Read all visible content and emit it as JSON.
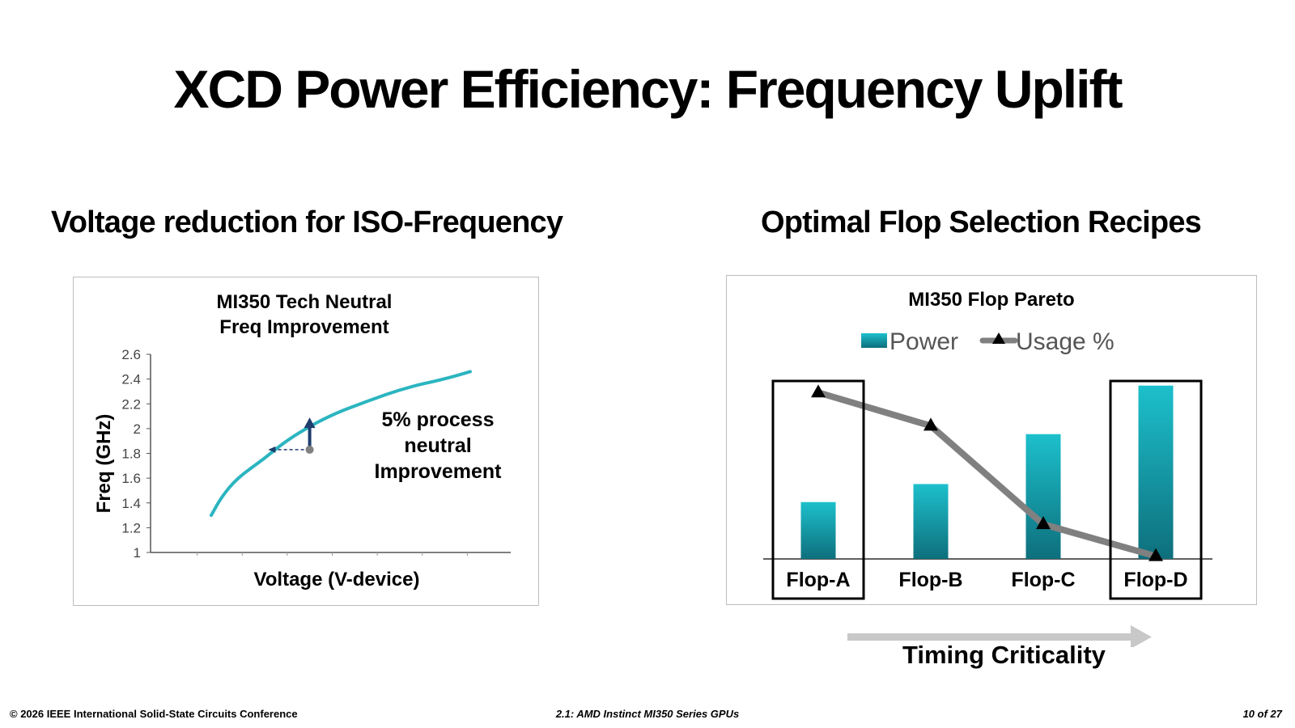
{
  "slide": {
    "title": "XCD Power Efficiency: Frequency Uplift",
    "left_heading": "Voltage reduction for ISO-Frequency",
    "right_heading": "Optimal Flop Selection Recipes",
    "timing_label": "Timing Criticality",
    "footer": {
      "left": "© 2026 IEEE International Solid-State Circuits Conference",
      "center": "2.1: AMD Instinct MI350 Series GPUs",
      "right": "10 of 27"
    },
    "colors": {
      "curve": "#2bb5c0",
      "arrow": "#1f3e6e",
      "bar_top": "#1cc0cc",
      "bar_bottom": "#0e6f7c",
      "usage_line": "#808080",
      "timing_arrow": "#c8c8c8"
    }
  },
  "chart_data": [
    {
      "type": "line",
      "title": "MI350 Tech Neutral\nFreq Improvement",
      "title_lines": [
        "MI350 Tech Neutral",
        "Freq Improvement"
      ],
      "xlabel": "Voltage (V-device)",
      "ylabel": "Freq (GHz)",
      "ylim": [
        1,
        2.6
      ],
      "yticks": [
        "1",
        "1.2",
        "1.4",
        "1.6",
        "1.8",
        "2",
        "2.2",
        "2.4",
        "2.6"
      ],
      "x_tick_labels": [],
      "series": [
        {
          "x": [
            0,
            0.04,
            0.1,
            0.2,
            0.3,
            0.45,
            0.6,
            0.75,
            0.9,
            1.0
          ],
          "y": [
            1.3,
            1.45,
            1.6,
            1.75,
            1.92,
            2.1,
            2.22,
            2.33,
            2.4,
            2.46
          ]
        }
      ],
      "annotation": {
        "lines": [
          "5% process",
          "neutral",
          "Improvement"
        ],
        "point": {
          "x": 0.38,
          "y": 1.83
        },
        "arrow_up_to_y": 2.09,
        "arrow_left_to_x": 0.22
      }
    },
    {
      "type": "bar",
      "title": "MI350 Flop Pareto",
      "categories": [
        "Flop-A",
        "Flop-B",
        "Flop-C",
        "Flop-D"
      ],
      "series": [
        {
          "name": "Power",
          "type": "bar",
          "values": [
            0.41,
            0.54,
            0.9,
            1.25
          ]
        },
        {
          "name": "Usage %",
          "type": "line",
          "marker": "triangle",
          "values": [
            1.2,
            0.96,
            0.25,
            0.02
          ]
        }
      ],
      "ylim": [
        0,
        1.4
      ],
      "highlighted": [
        "Flop-A",
        "Flop-D"
      ],
      "legend": "top"
    }
  ]
}
